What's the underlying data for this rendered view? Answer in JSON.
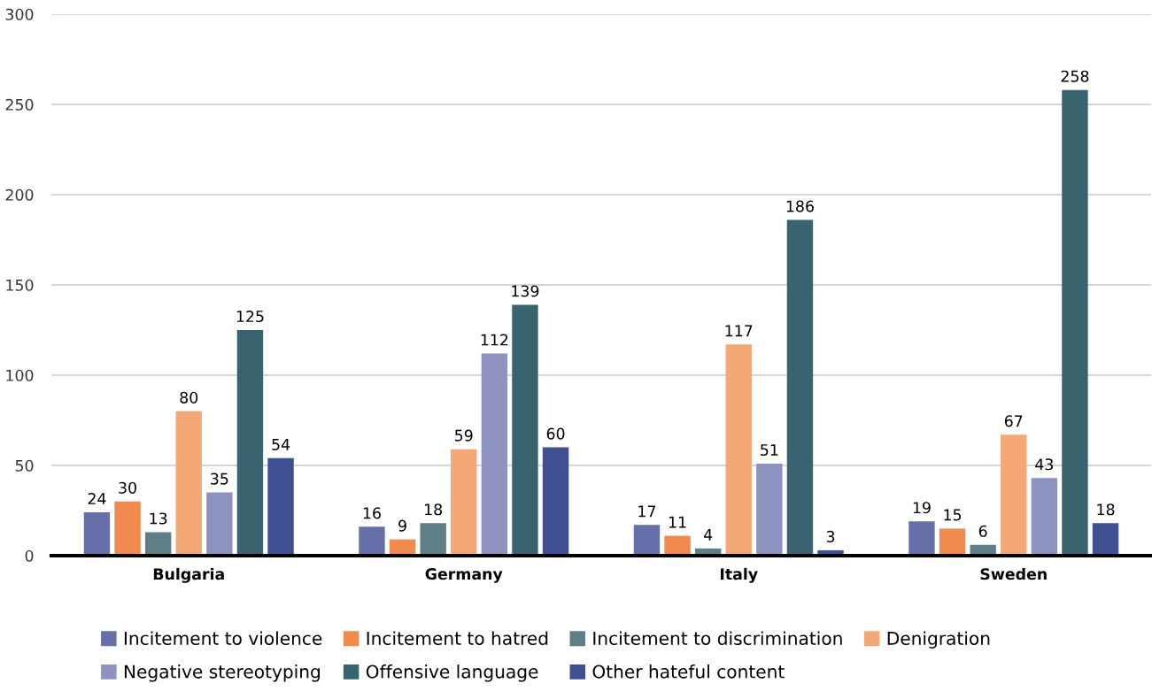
{
  "chart_data": {
    "type": "bar",
    "categories": [
      "Bulgaria",
      "Germany",
      "Italy",
      "Sweden"
    ],
    "series": [
      {
        "name": "Incitement to violence",
        "color": "#6570a8",
        "values": [
          24,
          16,
          17,
          19
        ]
      },
      {
        "name": "Incitement to hatred",
        "color": "#f08a4f",
        "values": [
          30,
          9,
          11,
          15
        ]
      },
      {
        "name": "Incitement to discrimination",
        "color": "#5f7e86",
        "values": [
          13,
          18,
          4,
          6
        ]
      },
      {
        "name": "Denigration",
        "color": "#f4a877",
        "values": [
          80,
          59,
          117,
          67
        ]
      },
      {
        "name": "Negative stereotyping",
        "color": "#8d92bf",
        "values": [
          35,
          112,
          51,
          43
        ]
      },
      {
        "name": "Offensive language",
        "color": "#38636f",
        "values": [
          125,
          139,
          186,
          258
        ]
      },
      {
        "name": "Other hateful content",
        "color": "#3e4f92",
        "values": [
          54,
          60,
          3,
          18
        ]
      }
    ],
    "ylim": [
      0,
      300
    ],
    "yticks": [
      0,
      50,
      100,
      150,
      200,
      250,
      300
    ],
    "grid": "y",
    "legend": "bottom",
    "data_labels": true
  }
}
